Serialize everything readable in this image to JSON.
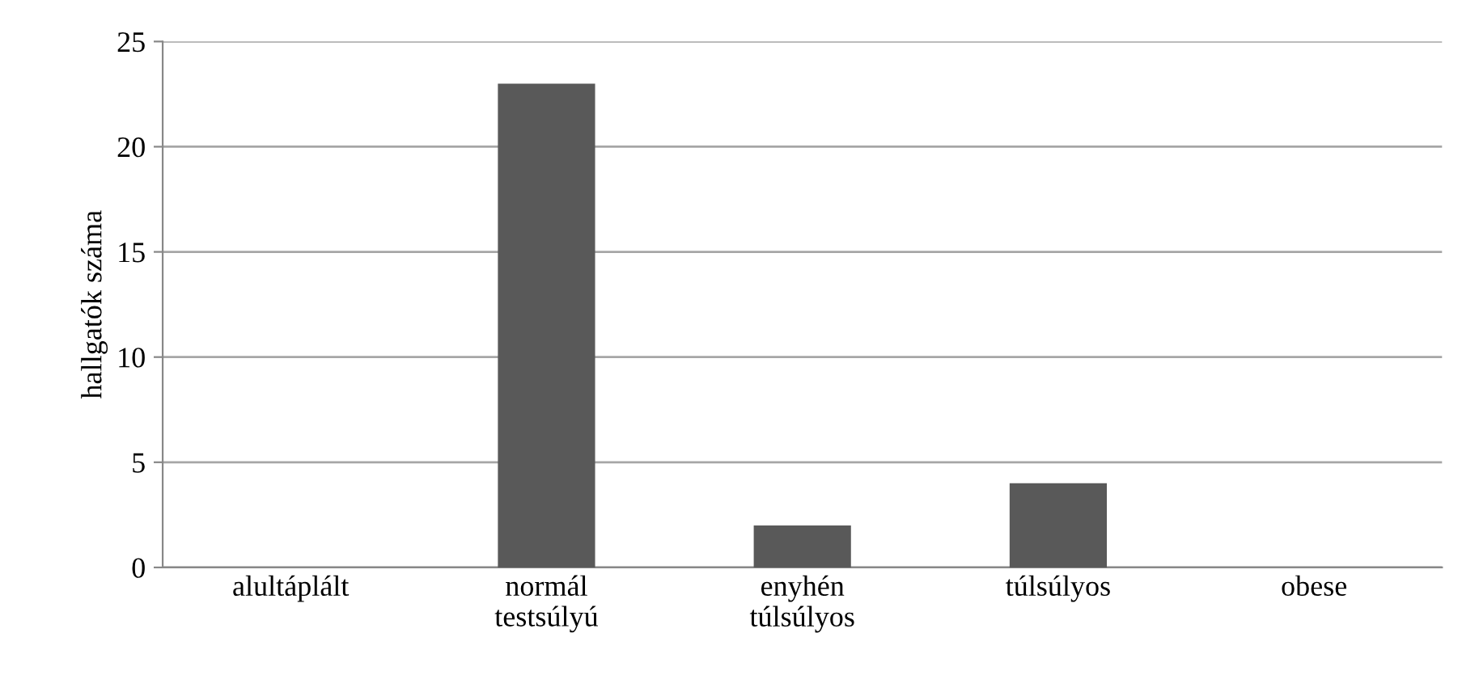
{
  "chart_data": {
    "type": "bar",
    "ylabel": "hallgatók száma",
    "categories": [
      "alultáplált",
      "normál\ntestsúlyú",
      "enyhén\ntúlsúlyos",
      "túlsúlyos",
      "obese"
    ],
    "values": [
      0,
      23,
      2,
      4,
      0
    ],
    "color": "#595959",
    "ylim": [
      0,
      25
    ],
    "yticks": [
      0,
      5,
      10,
      15,
      20,
      25
    ],
    "grid": "y",
    "legend": false
  }
}
